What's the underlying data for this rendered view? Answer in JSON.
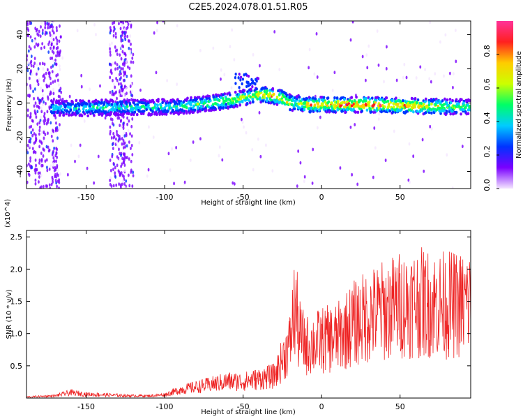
{
  "title": "C2E5.2024.078.01.51.R05",
  "chart_data": [
    {
      "type": "heatmap",
      "xlabel": "Height of straight line (km)",
      "ylabel": "Frequency (Hz)",
      "xlim": [
        -188,
        95
      ],
      "ylim": [
        -50,
        48
      ],
      "xticks": [
        -150,
        -100,
        -50,
        0,
        50
      ],
      "yticks": [
        -40,
        -20,
        0,
        20,
        40
      ],
      "colorbar": {
        "label": "Normalized spectral amplitude",
        "range": [
          0.0,
          1.0
        ],
        "ticks": [
          "0.0",
          "0.2",
          "0.4",
          "0.6",
          "0.8"
        ],
        "colors": [
          "#f4e6ff",
          "#7a00ff",
          "#0033ff",
          "#00ccff",
          "#00ff66",
          "#ccff00",
          "#ffcc00",
          "#ff2020",
          "#ff3399"
        ]
      },
      "ridge": {
        "x": [
          -170,
          -150,
          -130,
          -110,
          -90,
          -70,
          -55,
          -45,
          -38,
          -30,
          -25,
          -20,
          -15,
          -10,
          0,
          10,
          30,
          50,
          70,
          95
        ],
        "y": [
          -3,
          -3,
          -2.5,
          -2.5,
          -2,
          0,
          2,
          4,
          5,
          4,
          3,
          0,
          0,
          -1,
          -1,
          -1,
          -1,
          -1.5,
          -2,
          -2.5
        ],
        "amplitude": [
          0.4,
          0.5,
          0.5,
          0.45,
          0.5,
          0.6,
          0.65,
          0.7,
          0.8,
          0.85,
          0.85,
          0.7,
          0.6,
          0.8,
          0.85,
          0.9,
          0.9,
          0.85,
          0.75,
          0.55
        ]
      }
    },
    {
      "type": "line",
      "xlabel": "Height of straight line (km)",
      "ylabel": "SNR (10 * v/v)",
      "exponent_label": "(x10^4)",
      "xlim": [
        -188,
        95
      ],
      "ylim": [
        0,
        2.6
      ],
      "xticks": [
        -150,
        -100,
        -50,
        0,
        50
      ],
      "yticks": [
        "0.5",
        "1.0",
        "1.5",
        "2.0",
        "2.5"
      ],
      "color": "#ee2222",
      "envelope": {
        "x": [
          -188,
          -170,
          -160,
          -150,
          -130,
          -120,
          -110,
          -100,
          -90,
          -80,
          -70,
          -60,
          -50,
          -40,
          -30,
          -25,
          -20,
          -18,
          -16,
          -15,
          -10,
          -5,
          0,
          10,
          20,
          30,
          40,
          50,
          60,
          70,
          80,
          90,
          95
        ],
        "y": [
          0.02,
          0.04,
          0.1,
          0.07,
          0.05,
          0.04,
          0.04,
          0.06,
          0.15,
          0.2,
          0.25,
          0.3,
          0.3,
          0.35,
          0.4,
          0.7,
          1.0,
          1.5,
          1.7,
          1.2,
          0.95,
          1.0,
          1.05,
          1.1,
          1.35,
          1.5,
          1.6,
          1.7,
          1.75,
          1.72,
          1.7,
          1.7,
          1.75
        ]
      }
    }
  ]
}
